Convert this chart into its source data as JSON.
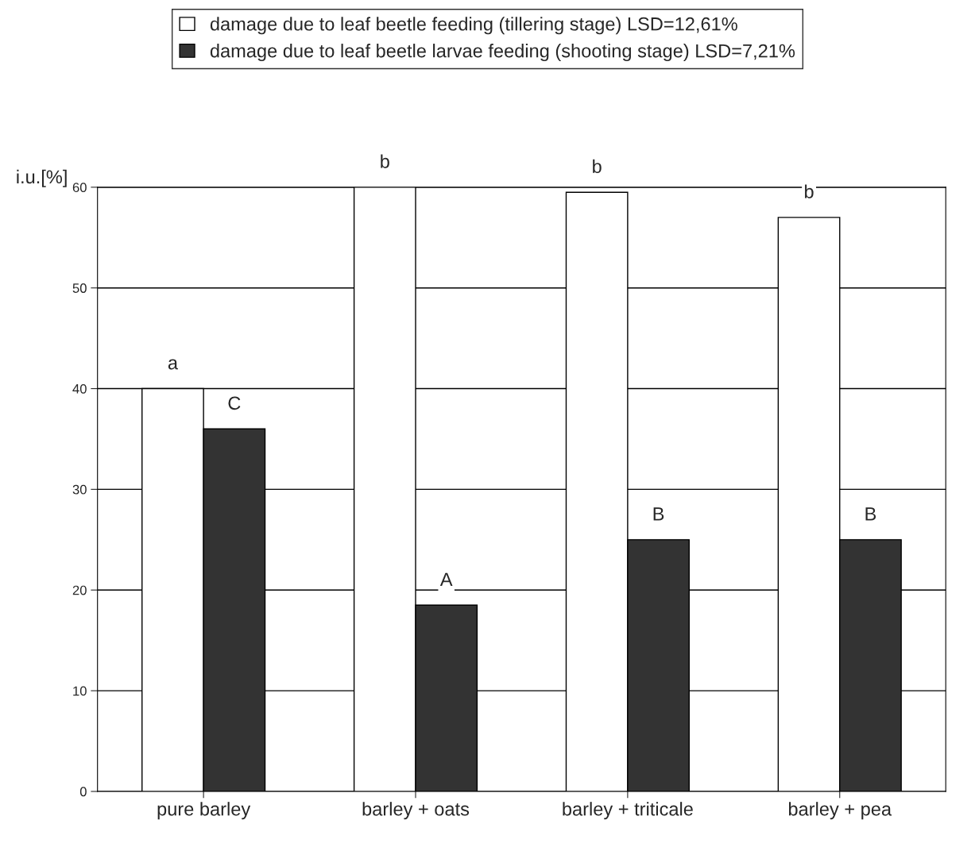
{
  "chart_data": {
    "type": "bar",
    "ylabel": "i.u.[%]",
    "categories": [
      "pure barley",
      "barley + oats",
      "barley + triticale",
      "barley + pea"
    ],
    "series": [
      {
        "name": "damage due to leaf beetle feeding (tillering stage) LSD=12,61%",
        "color": "#ffffff",
        "values": [
          40,
          60,
          59.5,
          57
        ]
      },
      {
        "name": "damage due to leaf beetle larvae feeding (shooting stage) LSD=7,21%",
        "color": "#333333",
        "values": [
          36,
          18.5,
          25,
          25
        ]
      }
    ],
    "ylim": [
      0,
      60
    ],
    "yticks": [
      0,
      10,
      20,
      30,
      40,
      50,
      60
    ],
    "grid": "y",
    "legend": "top",
    "annotations": [
      "a",
      "C",
      "b",
      "A",
      "b",
      "B",
      "b",
      "B"
    ]
  }
}
